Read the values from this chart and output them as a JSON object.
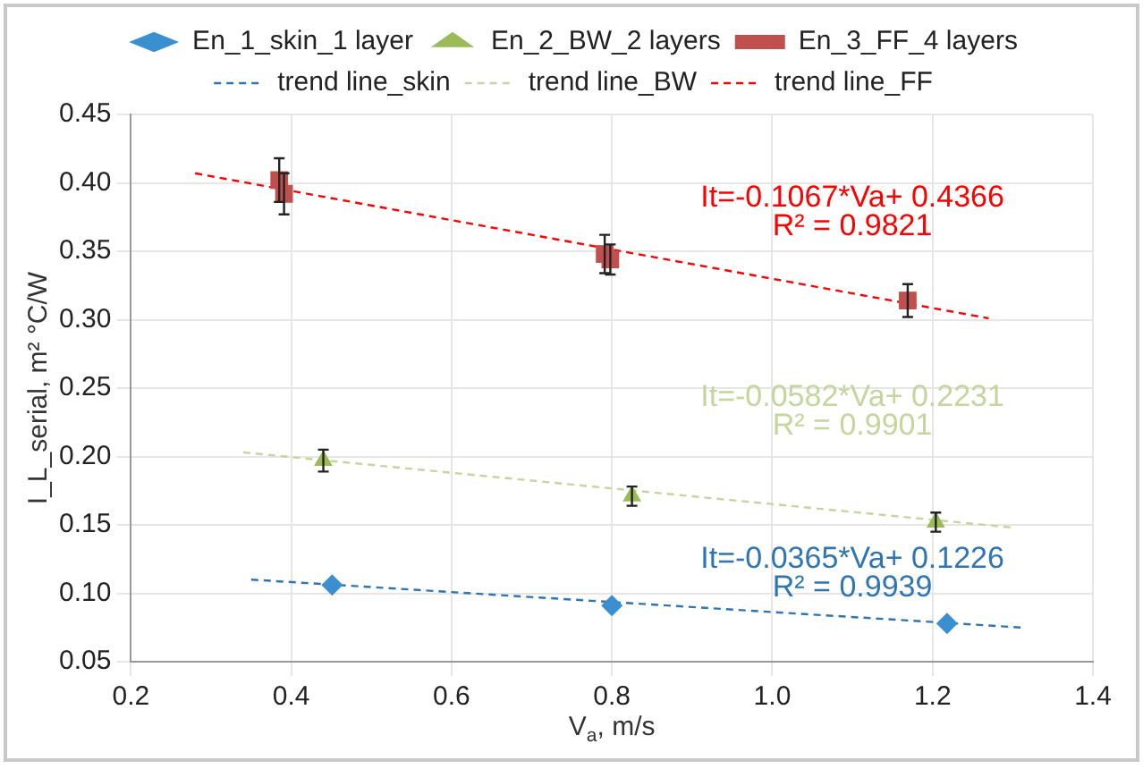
{
  "chart_data": {
    "type": "scatter",
    "xlabel": "V$_{a}$, m/s",
    "ylabel": "I_L_serial, m² °C/W",
    "xlim": [
      0.2,
      1.4
    ],
    "xticks": [
      {
        "value": 0.2,
        "label": "0.2"
      },
      {
        "value": 0.4,
        "label": "0.4"
      },
      {
        "value": 0.6,
        "label": "0.6"
      },
      {
        "value": 0.8,
        "label": "0.8"
      },
      {
        "value": 1.0,
        "label": "1.0"
      },
      {
        "value": 1.2,
        "label": "1.2"
      },
      {
        "value": 1.4,
        "label": "1.4"
      }
    ],
    "ylim": [
      0.05,
      0.45
    ],
    "yticks": [
      {
        "value": 0.05,
        "label": "0.05"
      },
      {
        "value": 0.1,
        "label": "0.10"
      },
      {
        "value": 0.15,
        "label": "0.15"
      },
      {
        "value": 0.2,
        "label": "0.20"
      },
      {
        "value": 0.25,
        "label": "0.25"
      },
      {
        "value": 0.3,
        "label": "0.30"
      },
      {
        "value": 0.35,
        "label": "0.35"
      },
      {
        "value": 0.4,
        "label": "0.40"
      },
      {
        "value": 0.45,
        "label": "0.45"
      }
    ],
    "grid": true,
    "legend": "top",
    "series": [
      {
        "name": "En_1_skin_1 layer",
        "type": "scatter",
        "marker": "diamond",
        "color": "#3a8fd0",
        "x": [
          0.451,
          0.8,
          1.218
        ],
        "values": [
          0.106,
          0.091,
          0.078
        ]
      },
      {
        "name": "En_2_BW_2 layers",
        "type": "scatter",
        "marker": "triangle",
        "color": "#9bbb59",
        "x": [
          0.44,
          0.825,
          1.204
        ],
        "values": [
          0.197,
          0.171,
          0.152
        ],
        "errors": [
          0.008,
          0.007,
          0.007
        ]
      },
      {
        "name": "En_3_FF_4 layers",
        "type": "scatter",
        "marker": "square",
        "color": "#c0504d",
        "x": [
          0.385,
          0.391,
          0.791,
          0.798,
          1.169
        ],
        "values": [
          0.402,
          0.392,
          0.348,
          0.344,
          0.314
        ],
        "errors": [
          0.016,
          0.015,
          0.014,
          0.011,
          0.012
        ]
      },
      {
        "name": "trend line_skin",
        "type": "line",
        "marker": "none",
        "line_style": "dashed",
        "color": "#2e75b6",
        "x": [
          0.35,
          1.31
        ],
        "values": [
          0.11,
          0.075
        ]
      },
      {
        "name": "trend line_BW",
        "type": "line",
        "marker": "none",
        "line_style": "dashed",
        "color": "#c3d69b",
        "x": [
          0.34,
          1.3
        ],
        "values": [
          0.203,
          0.148
        ]
      },
      {
        "name": "trend line_FF",
        "type": "line",
        "marker": "none",
        "line_style": "dashed",
        "color": "#ff0000",
        "x": [
          0.28,
          1.27
        ],
        "values": [
          0.407,
          0.301
        ]
      }
    ],
    "annotations": [
      "It=-0.1067*Va+ 0.4366",
      "R² = 0.9821",
      "It=-0.0582*Va+ 0.2231",
      "R² = 0.9901",
      "It=-0.0365*Va+ 0.1226",
      "R² = 0.9939"
    ]
  }
}
